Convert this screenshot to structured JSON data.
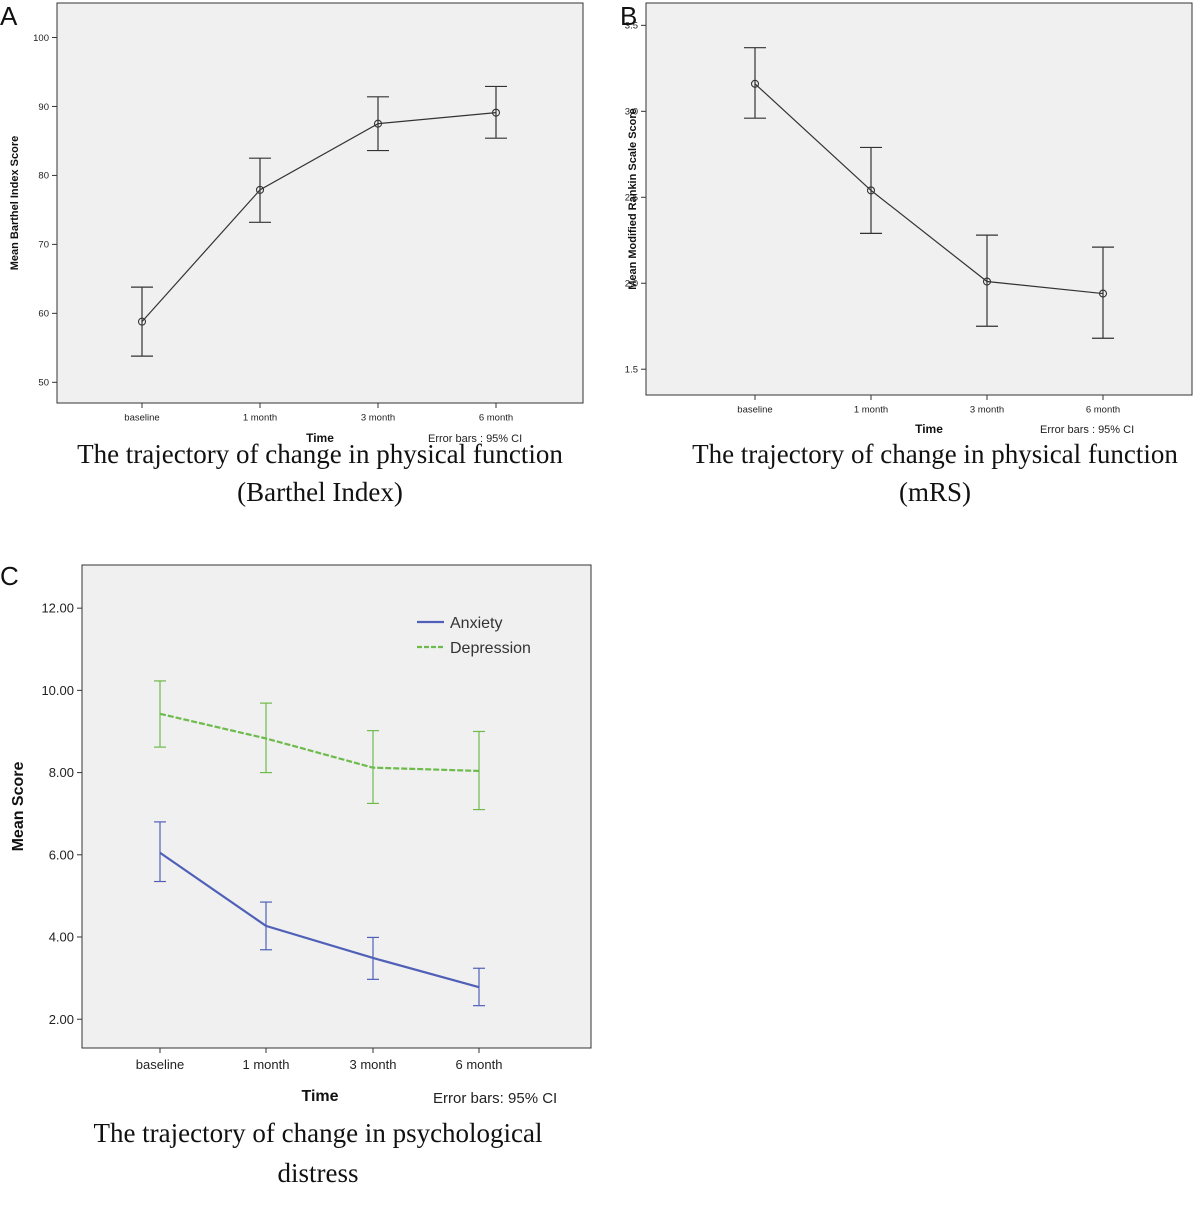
{
  "chart_data": [
    {
      "panel": "A",
      "type": "line",
      "caption_line1": "The trajectory of change in physical function",
      "caption_line2": "(Barthel Index)",
      "xlabel": "Time",
      "note": "Error bars : 95% CI",
      "ylabel": "Mean Barthel Index Score",
      "categories": [
        "baseline",
        "1 month",
        "3 month",
        "6 month"
      ],
      "ylim": [
        47,
        105
      ],
      "yticks": [
        "50",
        "60",
        "70",
        "80",
        "90",
        "100"
      ],
      "series": [
        {
          "name": "Barthel Index",
          "color": "#333333",
          "values": [
            58.8,
            77.9,
            87.5,
            89.1
          ],
          "ci_low": [
            53.8,
            73.2,
            83.6,
            85.4
          ],
          "ci_high": [
            63.8,
            82.5,
            91.4,
            92.9
          ]
        }
      ]
    },
    {
      "panel": "B",
      "type": "line",
      "caption_line1": "The trajectory of change in physical function",
      "caption_line2": "(mRS)",
      "xlabel": "Time",
      "note": "Error bars : 95% CI",
      "ylabel": "Mean Modified Rankin Scale Score",
      "categories": [
        "baseline",
        "1 month",
        "3 month",
        "6 month"
      ],
      "ylim": [
        1.35,
        3.63
      ],
      "yticks": [
        "1.5",
        "2.0",
        "2.5",
        "3.0",
        "3.5"
      ],
      "series": [
        {
          "name": "mRS",
          "color": "#333333",
          "values": [
            3.16,
            2.54,
            2.01,
            1.94
          ],
          "ci_low": [
            2.96,
            2.29,
            1.75,
            1.68
          ],
          "ci_high": [
            3.37,
            2.79,
            2.28,
            2.21
          ]
        }
      ]
    },
    {
      "panel": "C",
      "type": "line",
      "caption_line1": "The trajectory of change in psychological",
      "caption_line2": "distress",
      "xlabel": "Time",
      "note": "Error bars: 95% CI",
      "ylabel": "Mean Score",
      "categories": [
        "baseline",
        "1 month",
        "3 month",
        "6 month"
      ],
      "ylim": [
        1.3,
        13.05
      ],
      "yticks": [
        "2.00",
        "4.00",
        "6.00",
        "8.00",
        "10.00",
        "12.00"
      ],
      "legend": "top-right",
      "series": [
        {
          "name": "Anxiety",
          "color": "#5060b8",
          "dash": false,
          "values": [
            6.05,
            4.27,
            3.49,
            2.78
          ],
          "ci_low": [
            5.35,
            3.69,
            2.97,
            2.33
          ],
          "ci_high": [
            6.8,
            4.85,
            3.99,
            3.24
          ]
        },
        {
          "name": "Depression",
          "color": "#6dbb4c",
          "dash": true,
          "values": [
            9.43,
            8.83,
            8.12,
            8.04
          ],
          "ci_low": [
            8.62,
            8.0,
            7.25,
            7.1
          ],
          "ci_high": [
            10.23,
            9.69,
            9.02,
            9.0
          ]
        }
      ]
    }
  ]
}
